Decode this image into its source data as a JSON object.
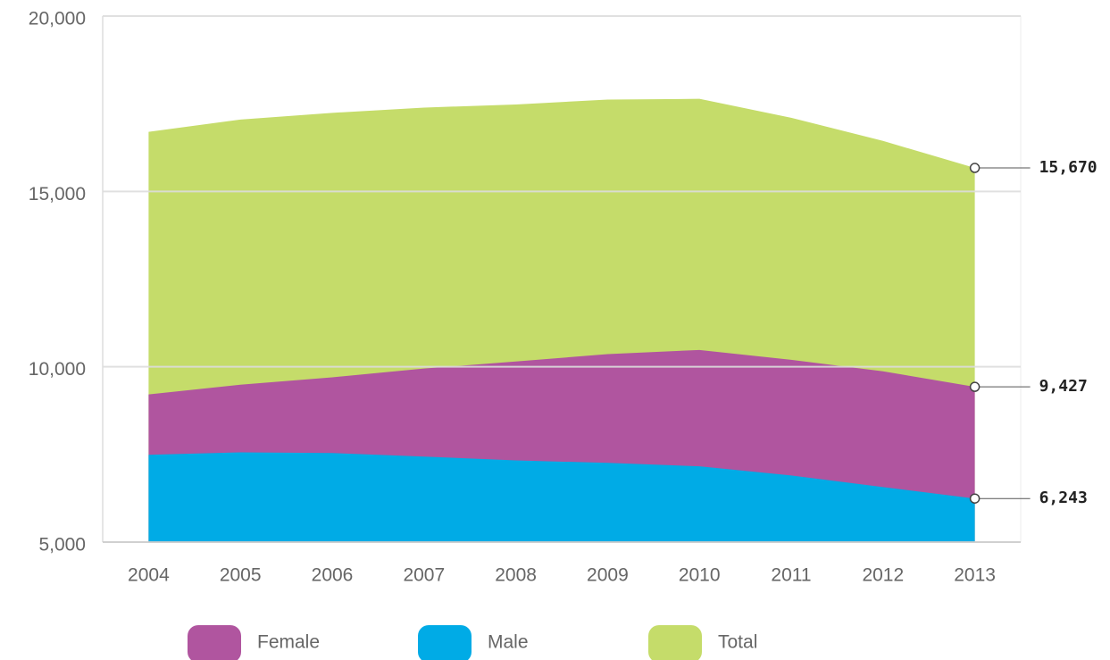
{
  "chart_data": {
    "type": "area",
    "categories": [
      "2004",
      "2005",
      "2006",
      "2007",
      "2008",
      "2009",
      "2010",
      "2011",
      "2012",
      "2013"
    ],
    "series": [
      {
        "name": "Total",
        "color": "#c5dc6a",
        "values": [
          16700,
          17050,
          17240,
          17390,
          17480,
          17620,
          17640,
          17100,
          16440,
          15670
        ],
        "value_labels": [
          null,
          null,
          null,
          null,
          null,
          null,
          null,
          null,
          null,
          "15,670"
        ]
      },
      {
        "name": "Female",
        "color": "#b0559f",
        "values": [
          9210,
          9490,
          9700,
          9950,
          10150,
          10360,
          10480,
          10200,
          9870,
          9427
        ],
        "value_labels": [
          null,
          null,
          null,
          null,
          null,
          null,
          null,
          null,
          null,
          "9,427"
        ]
      },
      {
        "name": "Male",
        "color": "#00abe6",
        "values": [
          7490,
          7560,
          7540,
          7440,
          7330,
          7260,
          7160,
          6900,
          6570,
          6243
        ],
        "value_labels": [
          null,
          null,
          null,
          null,
          null,
          null,
          null,
          null,
          null,
          "6,243"
        ]
      }
    ],
    "legend_order": [
      "Female",
      "Male",
      "Total"
    ],
    "ylim": [
      5000,
      20000
    ],
    "yticks": [
      {
        "value": 5000,
        "label": "5,000"
      },
      {
        "value": 10000,
        "label": "10,000"
      },
      {
        "value": 15000,
        "label": "15,000"
      },
      {
        "value": 20000,
        "label": "20,000"
      }
    ],
    "grid": true
  }
}
